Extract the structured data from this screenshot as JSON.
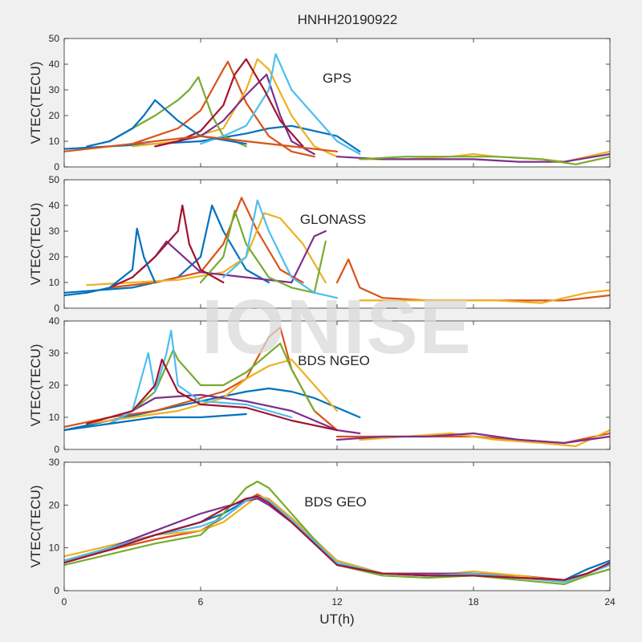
{
  "figure": {
    "title": "HNHH20190922",
    "xlabel": "UT(h)",
    "ylabel": "VTEC(TECU)",
    "watermark": "IONISE",
    "xticks": [
      0,
      6,
      12,
      18,
      24
    ],
    "colors": [
      "#0072BD",
      "#D95319",
      "#EDB120",
      "#7E2F8E",
      "#77AC30",
      "#4DBEEE",
      "#A2142F"
    ]
  },
  "chart_data": [
    {
      "type": "line",
      "title": "GPS",
      "xlim": [
        0,
        24
      ],
      "ylim": [
        0,
        50
      ],
      "yticks": [
        0,
        10,
        20,
        30,
        40,
        50
      ],
      "series": [
        {
          "x": [
            0,
            2,
            4,
            6,
            8,
            9,
            10,
            11,
            12,
            13
          ],
          "y": [
            7,
            8,
            9,
            10,
            13,
            15,
            16,
            14,
            12,
            6
          ]
        },
        {
          "x": [
            3,
            4,
            5,
            6,
            7,
            7.2,
            8,
            9,
            10,
            11
          ],
          "y": [
            9,
            12,
            15,
            22,
            38,
            41,
            25,
            12,
            6,
            4
          ]
        },
        {
          "x": [
            3,
            5,
            7,
            8,
            8.5,
            9,
            10,
            11,
            12
          ],
          "y": [
            8,
            10,
            15,
            30,
            42,
            38,
            20,
            8,
            4
          ]
        },
        {
          "x": [
            4,
            5,
            6,
            7,
            8,
            8.9,
            9.5,
            10,
            11
          ],
          "y": [
            8,
            10,
            12,
            18,
            28,
            36,
            20,
            10,
            5
          ]
        },
        {
          "x": [
            2,
            3,
            4,
            5,
            5.5,
            5.9,
            6.5,
            7,
            8
          ],
          "y": [
            10,
            15,
            20,
            26,
            30,
            35,
            20,
            12,
            8
          ]
        },
        {
          "x": [
            6,
            7,
            8,
            9,
            9.3,
            9.5,
            10,
            11,
            12,
            13
          ],
          "y": [
            9,
            12,
            16,
            30,
            44,
            40,
            30,
            20,
            10,
            5
          ]
        },
        {
          "x": [
            4,
            5,
            6,
            7,
            7.5,
            8,
            8.8,
            9.5,
            10.5
          ],
          "y": [
            8,
            10,
            14,
            24,
            36,
            42,
            30,
            18,
            8
          ]
        },
        {
          "x": [
            1,
            2,
            3,
            3.5,
            4,
            5,
            6,
            8
          ],
          "y": [
            8,
            10,
            15,
            20,
            26,
            18,
            12,
            9
          ]
        },
        {
          "x": [
            0,
            3,
            6,
            8,
            10,
            12
          ],
          "y": [
            6,
            9,
            12,
            10,
            8,
            6
          ]
        },
        {
          "x": [
            13,
            15,
            17,
            18,
            19,
            21,
            22,
            23,
            24
          ],
          "y": [
            3,
            3,
            4,
            5,
            4,
            3,
            2,
            4,
            6
          ]
        },
        {
          "x": [
            12,
            14,
            16,
            18,
            20,
            22,
            24
          ],
          "y": [
            4,
            3,
            3,
            3,
            2,
            2,
            5
          ]
        },
        {
          "x": [
            13,
            15,
            17,
            19,
            21,
            22.5,
            24
          ],
          "y": [
            3,
            4,
            4,
            4,
            3,
            1,
            4
          ]
        }
      ]
    },
    {
      "type": "line",
      "title": "GLONASS",
      "xlim": [
        0,
        24
      ],
      "ylim": [
        0,
        50
      ],
      "yticks": [
        0,
        10,
        20,
        30,
        40,
        50
      ],
      "series": [
        {
          "x": [
            0,
            3,
            5,
            6,
            6.5,
            7,
            8,
            9
          ],
          "y": [
            6,
            8,
            12,
            20,
            40,
            30,
            15,
            10
          ]
        },
        {
          "x": [
            2,
            4,
            6,
            7,
            7.8,
            8.5,
            9.5,
            10.5
          ],
          "y": [
            8,
            10,
            14,
            25,
            43,
            30,
            15,
            10
          ]
        },
        {
          "x": [
            1,
            3,
            5,
            7,
            8,
            8.8,
            9.5,
            10.5,
            11.5
          ],
          "y": [
            9,
            10,
            11,
            14,
            20,
            37,
            35,
            25,
            10
          ]
        },
        {
          "x": [
            3,
            4,
            4.5,
            5,
            6,
            8,
            10,
            11,
            11.5
          ],
          "y": [
            12,
            20,
            26,
            22,
            14,
            12,
            10,
            28,
            30
          ]
        },
        {
          "x": [
            6,
            7,
            7.5,
            8,
            9,
            10,
            11,
            11.5
          ],
          "y": [
            10,
            20,
            38,
            25,
            12,
            8,
            6,
            26
          ]
        },
        {
          "x": [
            7,
            8,
            8.5,
            9,
            10,
            11,
            12
          ],
          "y": [
            12,
            20,
            42,
            30,
            12,
            6,
            4
          ]
        },
        {
          "x": [
            2,
            3,
            4,
            5,
            5.2,
            5.5,
            6,
            7
          ],
          "y": [
            8,
            12,
            20,
            30,
            40,
            25,
            15,
            10
          ]
        },
        {
          "x": [
            0,
            1,
            2,
            3,
            3.2,
            3.5,
            4
          ],
          "y": [
            5,
            6,
            8,
            15,
            31,
            20,
            10
          ]
        },
        {
          "x": [
            12,
            12.5,
            13,
            14,
            16,
            18,
            20,
            22,
            24
          ],
          "y": [
            10,
            19,
            8,
            4,
            3,
            3,
            3,
            3,
            5
          ]
        },
        {
          "x": [
            13,
            15,
            17,
            19,
            21,
            23,
            24
          ],
          "y": [
            3,
            3,
            3,
            3,
            2,
            6,
            7
          ]
        }
      ]
    },
    {
      "type": "line",
      "title": "BDS NGEO",
      "xlim": [
        0,
        24
      ],
      "ylim": [
        0,
        40
      ],
      "yticks": [
        0,
        10,
        20,
        30,
        40
      ],
      "series": [
        {
          "x": [
            0,
            2,
            4,
            6,
            8,
            9,
            10,
            11,
            12,
            13
          ],
          "y": [
            6,
            9,
            12,
            15,
            18,
            19,
            18,
            16,
            13,
            10
          ]
        },
        {
          "x": [
            0,
            2,
            4,
            6,
            7,
            8,
            9,
            9.5,
            10,
            11,
            12
          ],
          "y": [
            7,
            10,
            12,
            16,
            18,
            22,
            35,
            38,
            25,
            12,
            6
          ]
        },
        {
          "x": [
            1,
            3,
            5,
            7,
            8,
            9,
            10,
            11,
            12
          ],
          "y": [
            8,
            10,
            12,
            16,
            22,
            26,
            28,
            20,
            12
          ]
        },
        {
          "x": [
            2,
            3,
            4,
            6,
            8,
            10,
            12,
            13
          ],
          "y": [
            8,
            12,
            16,
            17,
            15,
            12,
            6,
            5
          ]
        },
        {
          "x": [
            3,
            4,
            4.8,
            5,
            6,
            7,
            8,
            9,
            9.5,
            10,
            11
          ],
          "y": [
            12,
            18,
            31,
            28,
            20,
            20,
            24,
            30,
            33,
            25,
            12
          ]
        },
        {
          "x": [
            2,
            3,
            3.7,
            4,
            4.5,
            4.7,
            5,
            6,
            8,
            10
          ],
          "y": [
            8,
            12,
            30,
            18,
            30,
            37,
            20,
            15,
            14,
            10
          ]
        },
        {
          "x": [
            1,
            3,
            4,
            4.3,
            5,
            6,
            8,
            10,
            12
          ],
          "y": [
            8,
            12,
            20,
            28,
            18,
            14,
            13,
            9,
            6
          ]
        },
        {
          "x": [
            0,
            2,
            4,
            6,
            8
          ],
          "y": [
            6,
            8,
            10,
            10,
            11
          ]
        },
        {
          "x": [
            12,
            14,
            16,
            18,
            20,
            22,
            24
          ],
          "y": [
            4,
            4,
            4,
            4,
            3,
            2,
            5
          ]
        },
        {
          "x": [
            13,
            15,
            17,
            19,
            21,
            22.5,
            24
          ],
          "y": [
            3,
            4,
            5,
            3,
            2,
            1,
            6
          ]
        },
        {
          "x": [
            12,
            14,
            16,
            18,
            20,
            22,
            24
          ],
          "y": [
            3,
            4,
            4,
            5,
            3,
            2,
            4
          ]
        }
      ]
    },
    {
      "type": "line",
      "title": "BDS GEO",
      "xlim": [
        0,
        24
      ],
      "ylim": [
        0,
        30
      ],
      "yticks": [
        0,
        10,
        20,
        30
      ],
      "series": [
        {
          "x": [
            0,
            2,
            4,
            6,
            7,
            8,
            8.5,
            9,
            10,
            11,
            12,
            14,
            16,
            18,
            20,
            22,
            23,
            24
          ],
          "y": [
            7,
            10,
            13,
            16,
            18,
            21,
            22,
            21,
            17,
            12,
            7,
            4,
            3.5,
            3.5,
            3,
            2.5,
            5,
            7
          ]
        },
        {
          "x": [
            0,
            2,
            4,
            6,
            7,
            8,
            8.5,
            9,
            10,
            11,
            12,
            14,
            16,
            18,
            20,
            22,
            23,
            24
          ],
          "y": [
            7,
            9.5,
            12,
            14,
            17,
            21,
            22.5,
            21,
            16,
            11,
            7,
            4,
            4,
            4,
            3.5,
            2.5,
            4,
            6
          ]
        },
        {
          "x": [
            0,
            2,
            4,
            6,
            7,
            8,
            8.5,
            9,
            10,
            11,
            12,
            14,
            16,
            18,
            20,
            22,
            23,
            24
          ],
          "y": [
            8,
            10.5,
            13,
            14,
            16,
            20,
            22,
            21.5,
            17,
            12,
            7,
            4,
            3.5,
            4.5,
            3.5,
            2,
            3.5,
            5
          ]
        },
        {
          "x": [
            0,
            2,
            4,
            6,
            7,
            8,
            8.5,
            9,
            10,
            11,
            12,
            14,
            16,
            18,
            20,
            22,
            23,
            24
          ],
          "y": [
            7,
            10,
            14,
            18,
            19.5,
            21,
            21.5,
            20,
            16,
            11,
            6,
            4,
            4,
            4,
            3,
            2.5,
            4,
            6
          ]
        },
        {
          "x": [
            0,
            2,
            4,
            6,
            7,
            8,
            8.5,
            9,
            10,
            11,
            12,
            14,
            16,
            18,
            20,
            22,
            23,
            24
          ],
          "y": [
            6,
            8.5,
            11,
            13,
            18,
            24,
            25.5,
            24,
            18,
            12,
            6,
            3.5,
            3,
            3.5,
            2.5,
            1.5,
            3.5,
            5
          ]
        },
        {
          "x": [
            0,
            2,
            4,
            6,
            7,
            8,
            8.5,
            9,
            10,
            11,
            12,
            14,
            16,
            18,
            20,
            22,
            23,
            24
          ],
          "y": [
            7,
            10,
            13,
            15,
            17,
            21,
            22,
            21,
            16.5,
            11.5,
            6.5,
            4,
            3.5,
            4,
            3,
            2,
            4,
            6
          ]
        },
        {
          "x": [
            0,
            2,
            4,
            6,
            7,
            8,
            8.5,
            9,
            10,
            11,
            12,
            14,
            16,
            18,
            20,
            22,
            23,
            24
          ],
          "y": [
            6.5,
            9.5,
            13,
            16,
            19,
            21.5,
            22,
            20.5,
            16,
            11,
            6,
            4,
            3.5,
            3.5,
            3,
            2.5,
            4,
            6.5
          ]
        }
      ]
    }
  ]
}
